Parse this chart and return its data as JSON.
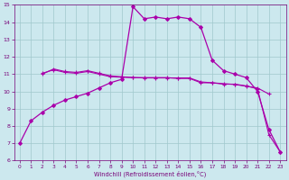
{
  "xlabel": "Windchill (Refroidissement éolien,°C)",
  "background_color": "#cce8ee",
  "grid_color": "#a0c8cc",
  "line_color": "#aa00aa",
  "xlim": [
    -0.5,
    23.5
  ],
  "ylim": [
    6,
    15
  ],
  "xticks": [
    0,
    1,
    2,
    3,
    4,
    5,
    6,
    7,
    8,
    9,
    10,
    11,
    12,
    13,
    14,
    15,
    16,
    17,
    18,
    19,
    20,
    21,
    22,
    23
  ],
  "yticks": [
    6,
    7,
    8,
    9,
    10,
    11,
    12,
    13,
    14,
    15
  ],
  "series": [
    {
      "x": [
        0,
        1,
        2,
        3,
        4,
        5,
        6,
        7,
        8,
        9,
        10,
        11,
        12,
        13,
        14,
        15,
        16,
        17,
        18,
        19,
        20,
        21,
        22,
        23
      ],
      "y": [
        7.0,
        8.3,
        8.8,
        9.2,
        9.5,
        9.7,
        9.9,
        10.2,
        10.5,
        10.7,
        14.9,
        14.2,
        14.3,
        14.2,
        14.3,
        14.2,
        13.7,
        11.8,
        11.2,
        11.0,
        10.8,
        10.0,
        7.8,
        6.5
      ],
      "marker": "D",
      "markersize": 2.0,
      "linewidth": 0.9
    },
    {
      "x": [
        2,
        3,
        4,
        5,
        6,
        7,
        8,
        9,
        10,
        11,
        12,
        13,
        14,
        15,
        16,
        17,
        18,
        19,
        20,
        21,
        22
      ],
      "y": [
        11.0,
        11.3,
        11.15,
        11.1,
        11.2,
        11.05,
        10.9,
        10.85,
        10.8,
        10.8,
        10.8,
        10.8,
        10.75,
        10.75,
        10.5,
        10.5,
        10.45,
        10.4,
        10.3,
        10.2,
        9.85
      ],
      "marker": "+",
      "markersize": 3.5,
      "linewidth": 0.8
    },
    {
      "x": [
        2,
        3,
        4,
        5,
        6,
        7,
        8,
        9,
        10,
        11,
        12,
        13,
        14,
        15,
        16,
        17,
        18,
        19,
        20,
        21,
        22,
        23
      ],
      "y": [
        11.05,
        11.25,
        11.1,
        11.05,
        11.15,
        11.0,
        10.85,
        10.82,
        10.8,
        10.78,
        10.78,
        10.78,
        10.78,
        10.78,
        10.55,
        10.5,
        10.42,
        10.42,
        10.32,
        10.15,
        7.5,
        6.5
      ],
      "marker": "+",
      "markersize": 3.5,
      "linewidth": 0.8
    }
  ]
}
